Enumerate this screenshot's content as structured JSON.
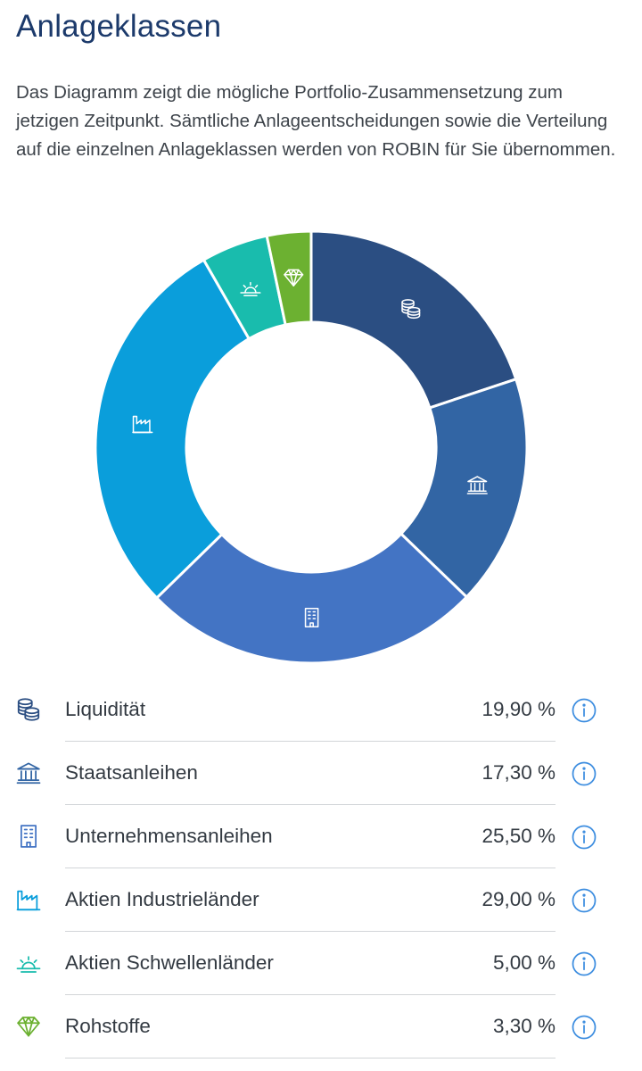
{
  "header": {
    "title": "Anlageklassen",
    "description": "Das Diagramm zeigt die mögliche Portfolio-Zusammensetzung zum jetzigen Zeitpunkt. Sämtliche Anlageentscheidungen sowie die Verteilung auf die einzelnen Anlageklassen werden von ROBIN für Sie übernommen."
  },
  "chart_data": {
    "type": "pie",
    "style": "donut",
    "slices": [
      {
        "label": "Liquidität",
        "value": 19.9,
        "display": "19,90 %",
        "color": "#2b4e82",
        "icon": "coins-icon"
      },
      {
        "label": "Staatsanleihen",
        "value": 17.3,
        "display": "17,30 %",
        "color": "#3265a4",
        "icon": "bank-icon"
      },
      {
        "label": "Unternehmensanleihen",
        "value": 25.5,
        "display": "25,50 %",
        "color": "#4374c4",
        "icon": "building-icon"
      },
      {
        "label": "Aktien Industrieländer",
        "value": 29.0,
        "display": "29,00 %",
        "color": "#0a9edb",
        "icon": "factory-icon"
      },
      {
        "label": "Aktien Schwellenländer",
        "value": 5.0,
        "display": "5,00 %",
        "color": "#19bcad",
        "icon": "sunrise-icon"
      },
      {
        "label": "Rohstoffe",
        "value": 3.3,
        "display": "3,30 %",
        "color": "#6cb131",
        "icon": "diamond-icon"
      }
    ]
  },
  "legend": {
    "info_icon": "info-icon",
    "info_color": "#3e8ee0"
  }
}
